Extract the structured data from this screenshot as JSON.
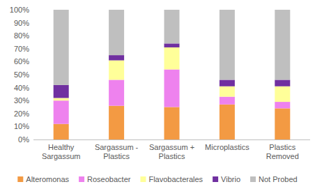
{
  "chart_data": {
    "type": "bar",
    "stacked": true,
    "grid": false,
    "legend": "bottom",
    "categories": [
      "Healthy Sargassum",
      "Sargassum - Plastics",
      "Sargassum + Plastics",
      "Microplastics",
      "Plastics Removed"
    ],
    "series": [
      {
        "name": "Alteromonas",
        "color": "#f39a43",
        "values": [
          12,
          26,
          25,
          27,
          24
        ]
      },
      {
        "name": "Roseobacter",
        "color": "#ee82ee",
        "values": [
          18,
          20,
          29,
          6,
          5
        ]
      },
      {
        "name": "Flavobacterales",
        "color": "#ffff99",
        "values": [
          2,
          15,
          17,
          8,
          12
        ]
      },
      {
        "name": "Vibrio",
        "color": "#7030a0",
        "values": [
          10,
          4,
          3,
          5,
          5
        ]
      },
      {
        "name": "Not Probed",
        "color": "#bfbfbf",
        "values": [
          58,
          35,
          26,
          54,
          54
        ]
      }
    ],
    "ylim": [
      0,
      100
    ],
    "yticks": [
      {
        "value": 0,
        "label": "0%"
      },
      {
        "value": 10,
        "label": "10%"
      },
      {
        "value": 20,
        "label": "20%"
      },
      {
        "value": 30,
        "label": "30%"
      },
      {
        "value": 40,
        "label": "40%"
      },
      {
        "value": 50,
        "label": "50%"
      },
      {
        "value": 60,
        "label": "60%"
      },
      {
        "value": 70,
        "label": "70%"
      },
      {
        "value": 80,
        "label": "80%"
      },
      {
        "value": 90,
        "label": "90%"
      },
      {
        "value": 100,
        "label": "100%"
      }
    ]
  }
}
